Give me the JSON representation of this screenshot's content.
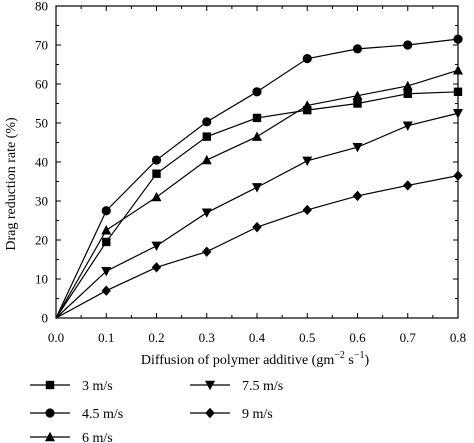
{
  "chart_data": {
    "type": "line",
    "title": "",
    "xlabel": "Diffusion of polymer additive (gm",
    "xlabel_sup1": "−2",
    "xlabel_mid": " s",
    "xlabel_sup2": "−1",
    "xlabel_end": ")",
    "ylabel": "Drag reduction rate (%)",
    "xlim": [
      0.0,
      0.8
    ],
    "ylim": [
      0,
      80
    ],
    "x_ticks": [
      "0.0",
      "0.1",
      "0.2",
      "0.3",
      "0.4",
      "0.5",
      "0.6",
      "0.7",
      "0.8"
    ],
    "y_ticks": [
      "0",
      "10",
      "20",
      "30",
      "40",
      "50",
      "60",
      "70",
      "80"
    ],
    "grid": false,
    "legend_position": "bottom",
    "x": [
      0.0,
      0.1,
      0.2,
      0.3,
      0.4,
      0.5,
      0.6,
      0.7,
      0.8
    ],
    "series": [
      {
        "name": "3 m/s",
        "marker": "square",
        "values": [
          0,
          19.5,
          37,
          46.5,
          51.3,
          53.3,
          55,
          57.5,
          58
        ]
      },
      {
        "name": "4.5 m/s",
        "marker": "circle",
        "values": [
          0,
          27.5,
          40.5,
          50.3,
          58,
          66.5,
          69,
          70,
          71.5
        ]
      },
      {
        "name": "6 m/s",
        "marker": "triangle-up",
        "values": [
          0,
          22.5,
          31,
          40.5,
          46.5,
          54.5,
          57,
          59.5,
          63.5
        ]
      },
      {
        "name": "7.5 m/s",
        "marker": "triangle-down",
        "values": [
          0,
          12,
          18.5,
          27,
          33.5,
          40.3,
          43.8,
          49.3,
          52.5
        ]
      },
      {
        "name": "9 m/s",
        "marker": "diamond",
        "values": [
          0,
          7,
          13,
          17,
          23.3,
          27.7,
          31.3,
          34,
          36.5
        ]
      }
    ],
    "colors": {
      "line": "#000000",
      "marker": "#000000"
    }
  }
}
